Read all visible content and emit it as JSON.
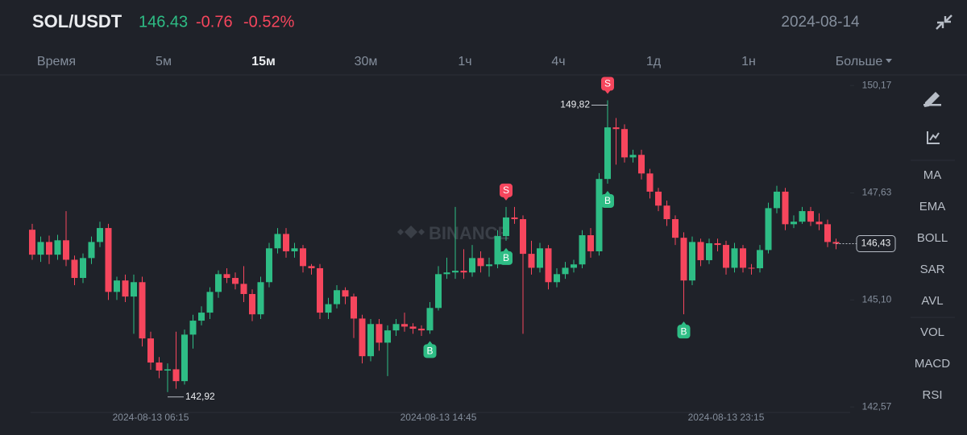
{
  "header": {
    "symbol": "SOL/USDT",
    "price": "146.43",
    "change": "-0.76",
    "change_percent": "-0.52%",
    "date": "2024-08-14"
  },
  "tabs": [
    "Время",
    "5м",
    "15м",
    "30м",
    "1ч",
    "4ч",
    "1д",
    "1н",
    "Больше"
  ],
  "active_tab": 2,
  "indicators": [
    "MA",
    "EMA",
    "BOLL",
    "SAR",
    "AVL",
    "VOL",
    "MACD",
    "RSI"
  ],
  "watermark": "BINANCE",
  "chart_data": {
    "type": "candlestick",
    "up_color": "#2ebd85",
    "down_color": "#f6465d",
    "categories": [
      null,
      null,
      null,
      null,
      null,
      null,
      null,
      null,
      null,
      null,
      null,
      null,
      null,
      null,
      "2024-08-13 06:15",
      null,
      null,
      null,
      null,
      null,
      null,
      null,
      null,
      null,
      null,
      null,
      null,
      null,
      null,
      null,
      null,
      null,
      null,
      null,
      null,
      null,
      null,
      null,
      null,
      null,
      null,
      null,
      null,
      null,
      null,
      null,
      null,
      null,
      "2024-08-13 14:45",
      null,
      null,
      null,
      null,
      null,
      null,
      null,
      null,
      null,
      null,
      null,
      null,
      null,
      null,
      null,
      null,
      null,
      null,
      null,
      null,
      null,
      null,
      null,
      null,
      null,
      null,
      null,
      null,
      null,
      null,
      null,
      null,
      null,
      "2024-08-13 23:15",
      null,
      null,
      null,
      null,
      null,
      null,
      null,
      null,
      null,
      null,
      null,
      null,
      null
    ],
    "open": [
      146.76,
      146.17,
      146.47,
      146.17,
      146.51,
      146.05,
      145.62,
      146.09,
      146.47,
      146.8,
      145.29,
      145.56,
      145.18,
      145.52,
      144.19,
      143.62,
      143.43,
      143.46,
      143.18,
      144.28,
      144.61,
      144.8,
      145.29,
      145.71,
      145.62,
      145.48,
      145.24,
      144.76,
      145.52,
      146.32,
      146.66,
      146.25,
      146.32,
      145.9,
      145.85,
      144.8,
      145.0,
      145.33,
      145.18,
      144.66,
      143.77,
      144.53,
      144.09,
      144.38,
      144.53,
      144.47,
      144.42,
      144.38,
      144.91,
      145.71,
      145.75,
      145.79,
      145.75,
      146.09,
      145.9,
      145.94,
      146.61,
      147.05,
      147.01,
      146.19,
      145.86,
      146.32,
      145.52,
      145.71,
      145.86,
      145.94,
      146.63,
      146.25,
      147.96,
      149.18,
      149.14,
      148.47,
      148.53,
      148.09,
      147.66,
      147.33,
      147.01,
      146.57,
      145.56,
      146.47,
      146.04,
      146.44,
      146.4,
      145.86,
      146.32,
      145.86,
      145.85,
      146.28,
      147.27,
      147.66,
      146.89,
      146.95,
      147.2,
      146.95,
      146.89,
      146.47
    ],
    "high": [
      146.9,
      146.6,
      146.62,
      146.64,
      147.2,
      146.15,
      146.2,
      146.6,
      146.95,
      146.9,
      145.65,
      145.7,
      145.7,
      145.65,
      144.35,
      143.75,
      143.6,
      144.35,
      144.4,
      144.75,
      144.95,
      145.4,
      145.8,
      145.85,
      145.75,
      145.9,
      145.35,
      145.65,
      146.45,
      146.8,
      146.8,
      146.45,
      146.4,
      145.95,
      145.95,
      145.15,
      145.45,
      145.4,
      145.25,
      144.75,
      144.65,
      144.65,
      144.5,
      144.65,
      144.8,
      144.55,
      144.5,
      145.05,
      145.9,
      146.1,
      147.3,
      146.3,
      146.4,
      146.25,
      146.1,
      146.75,
      147.3,
      147.3,
      147.1,
      146.5,
      146.45,
      146.4,
      145.85,
      146.0,
      146.05,
      146.75,
      146.8,
      148.1,
      149.82,
      149.4,
      149.25,
      148.65,
      148.65,
      148.2,
      147.75,
      147.45,
      147.1,
      146.7,
      146.6,
      146.55,
      146.55,
      146.55,
      146.5,
      146.45,
      146.4,
      145.95,
      146.4,
      147.4,
      147.8,
      147.75,
      147.1,
      147.3,
      147.3,
      147.15,
      147.0,
      146.55
    ],
    "low": [
      146.05,
      146.0,
      145.95,
      146.05,
      145.9,
      145.45,
      145.5,
      145.95,
      146.35,
      145.1,
      145.1,
      145.05,
      144.3,
      144.0,
      143.45,
      143.25,
      142.92,
      143.0,
      143.1,
      143.95,
      144.5,
      144.65,
      145.15,
      145.5,
      145.35,
      145.05,
      144.6,
      144.65,
      145.4,
      146.2,
      146.1,
      146.1,
      145.75,
      145.7,
      144.65,
      144.65,
      144.9,
      145.0,
      144.2,
      143.6,
      143.65,
      143.9,
      143.3,
      144.25,
      144.35,
      144.3,
      144.25,
      144.3,
      144.85,
      145.6,
      145.6,
      145.6,
      145.65,
      145.75,
      145.65,
      145.85,
      146.5,
      146.9,
      144.3,
      145.7,
      145.75,
      145.35,
      145.4,
      145.6,
      145.75,
      145.85,
      146.1,
      146.15,
      147.85,
      148.3,
      148.35,
      148.35,
      147.95,
      147.5,
      147.2,
      146.85,
      146.4,
      144.76,
      145.45,
      145.9,
      145.95,
      146.25,
      145.7,
      145.75,
      145.75,
      145.7,
      145.75,
      146.2,
      147.15,
      146.75,
      146.8,
      146.9,
      146.85,
      146.75,
      146.35,
      146.3
    ],
    "close": [
      146.17,
      146.47,
      146.17,
      146.51,
      146.05,
      145.62,
      146.09,
      146.47,
      146.8,
      145.29,
      145.56,
      145.18,
      145.52,
      144.19,
      143.62,
      143.43,
      143.46,
      143.18,
      144.28,
      144.61,
      144.8,
      145.29,
      145.71,
      145.62,
      145.48,
      145.24,
      144.76,
      145.52,
      146.32,
      146.66,
      146.25,
      146.32,
      145.9,
      145.85,
      144.8,
      145.0,
      145.33,
      145.18,
      144.66,
      143.77,
      144.53,
      144.09,
      144.38,
      144.53,
      144.47,
      144.42,
      144.38,
      144.91,
      145.71,
      145.75,
      145.79,
      145.75,
      146.09,
      145.9,
      145.94,
      146.61,
      147.05,
      147.01,
      146.19,
      145.86,
      146.32,
      145.52,
      145.71,
      145.86,
      145.94,
      146.63,
      146.25,
      147.96,
      149.18,
      149.14,
      148.47,
      148.53,
      148.09,
      147.66,
      147.33,
      147.01,
      146.57,
      145.56,
      146.47,
      146.04,
      146.44,
      146.4,
      145.86,
      146.32,
      145.86,
      145.85,
      146.28,
      147.27,
      147.66,
      146.89,
      146.95,
      147.2,
      146.95,
      146.89,
      146.47,
      146.43
    ],
    "ylim": [
      142.44,
      150.42
    ],
    "yticks": [
      {
        "value": 150.17,
        "label": "150,17"
      },
      {
        "value": 147.63,
        "label": "147,63"
      },
      {
        "value": 145.1,
        "label": "145,10"
      },
      {
        "value": 142.57,
        "label": "142,57"
      }
    ],
    "trades": [
      {
        "label": "S",
        "index": 56
      },
      {
        "label": "B",
        "index": 56
      },
      {
        "label": "S",
        "index": 68
      },
      {
        "label": "B",
        "index": 68
      },
      {
        "label": "B",
        "index": 47
      },
      {
        "label": "B",
        "index": 77
      }
    ],
    "annotations": [
      {
        "label": "149,82",
        "value": 149.82,
        "index": 68
      },
      {
        "label": "142,92",
        "value": 142.92,
        "index": 16
      }
    ],
    "last_price": {
      "label": "146,43",
      "value": 146.43
    }
  }
}
